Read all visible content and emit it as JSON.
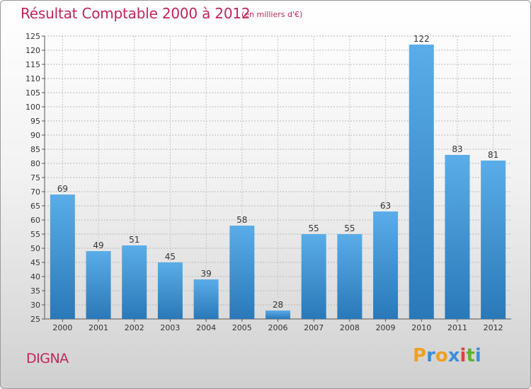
{
  "header": {
    "title": "Résultat Comptable 2000 à 2012",
    "subtitle": "(en milliers d'€)"
  },
  "footer": {
    "commune": "DIGNA",
    "logo": {
      "letters": [
        "P",
        "r",
        "o",
        "x",
        "i",
        "t",
        "i"
      ],
      "colors": [
        "#f0a020",
        "#3a8fd8",
        "#f0a020",
        "#3a8fd8",
        "#e04040",
        "#60b030",
        "#3a8fd8"
      ]
    }
  },
  "chart_data": {
    "type": "bar",
    "title": "Résultat Comptable 2000 à 2012",
    "subtitle": "(en milliers d'€)",
    "categories": [
      "2000",
      "2001",
      "2002",
      "2003",
      "2004",
      "2005",
      "2006",
      "2007",
      "2008",
      "2009",
      "2010",
      "2011",
      "2012"
    ],
    "values": [
      69,
      49,
      51,
      45,
      39,
      58,
      28,
      55,
      55,
      63,
      122,
      83,
      81
    ],
    "data_labels": [
      "69",
      "49",
      "51",
      "45",
      "39",
      "58",
      "28",
      "55",
      "55",
      "63",
      "122",
      "83",
      "81"
    ],
    "ylim": [
      25,
      125
    ],
    "yticks": [
      25,
      30,
      35,
      40,
      45,
      50,
      55,
      60,
      65,
      70,
      75,
      80,
      85,
      90,
      95,
      100,
      105,
      110,
      115,
      120,
      125
    ],
    "grid": true,
    "bar_color_top": "#5aade8",
    "bar_color_bottom": "#2a78b8"
  }
}
